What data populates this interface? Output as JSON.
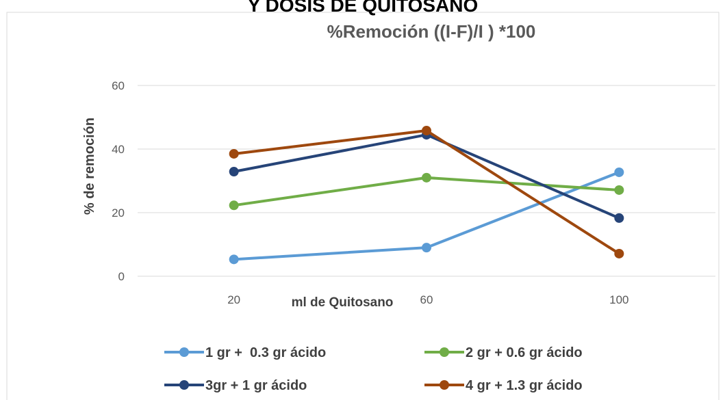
{
  "chart_data": {
    "type": "line",
    "supertitle": "Y DOSIS DE QUITOSANO",
    "title": "%Remoción ((I-F)/I ) *100",
    "x_label": "ml de Quitosano",
    "y_label": "% de remoción",
    "categories": [
      "20",
      "60",
      "100"
    ],
    "series": [
      {
        "name": "1 gr +  0.3 gr ácido",
        "color": "#5b9bd5",
        "values": [
          5.3,
          9.0,
          32.7
        ]
      },
      {
        "name": "2 gr + 0.6 gr ácido",
        "color": "#70ad47",
        "values": [
          22.3,
          31.0,
          27.1
        ]
      },
      {
        "name": "3gr + 1 gr ácido",
        "color": "#264478",
        "values": [
          32.9,
          44.5,
          18.3
        ]
      },
      {
        "name": "4 gr + 1.3 gr ácido",
        "color": "#9e480e",
        "values": [
          38.5,
          45.8,
          7.1
        ]
      }
    ],
    "ylim": [
      0,
      60
    ],
    "yticks": [
      0,
      20,
      40,
      60
    ],
    "grid": true,
    "legend": "bottom"
  }
}
